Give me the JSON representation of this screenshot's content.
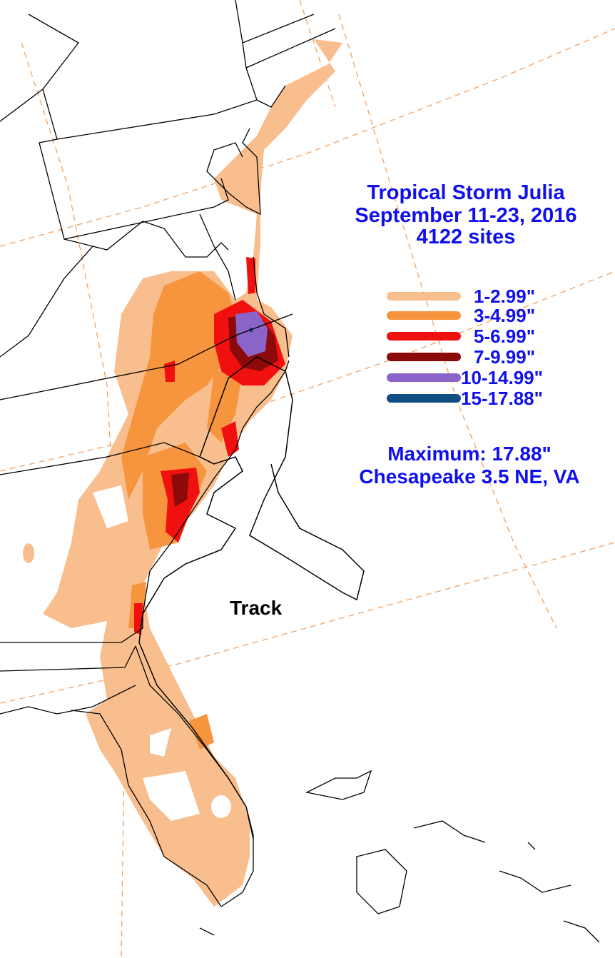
{
  "title": {
    "line1": "Tropical Storm Julia",
    "line2": "September 11-23, 2016",
    "line3": "4122 sites"
  },
  "legend": [
    {
      "label": "1-2.99\"",
      "color": "#f9be8d"
    },
    {
      "label": "3-4.99\"",
      "color": "#f7953f"
    },
    {
      "label": "5-6.99\"",
      "color": "#f01010"
    },
    {
      "label": "7-9.99\"",
      "color": "#8c0a0a"
    },
    {
      "label": "10-14.99\"",
      "color": "#8a64c8"
    },
    {
      "label": "15-17.88\"",
      "color": "#114e84"
    }
  ],
  "maximum": {
    "line1": "Maximum: 17.88\"",
    "line2": "Chesapeake 3.5 NE, VA"
  },
  "track_label": "Track",
  "colors": {
    "text": "#1010ee",
    "boundary": "#000000",
    "graticule": "#f4a060",
    "background": "#ffffff"
  }
}
